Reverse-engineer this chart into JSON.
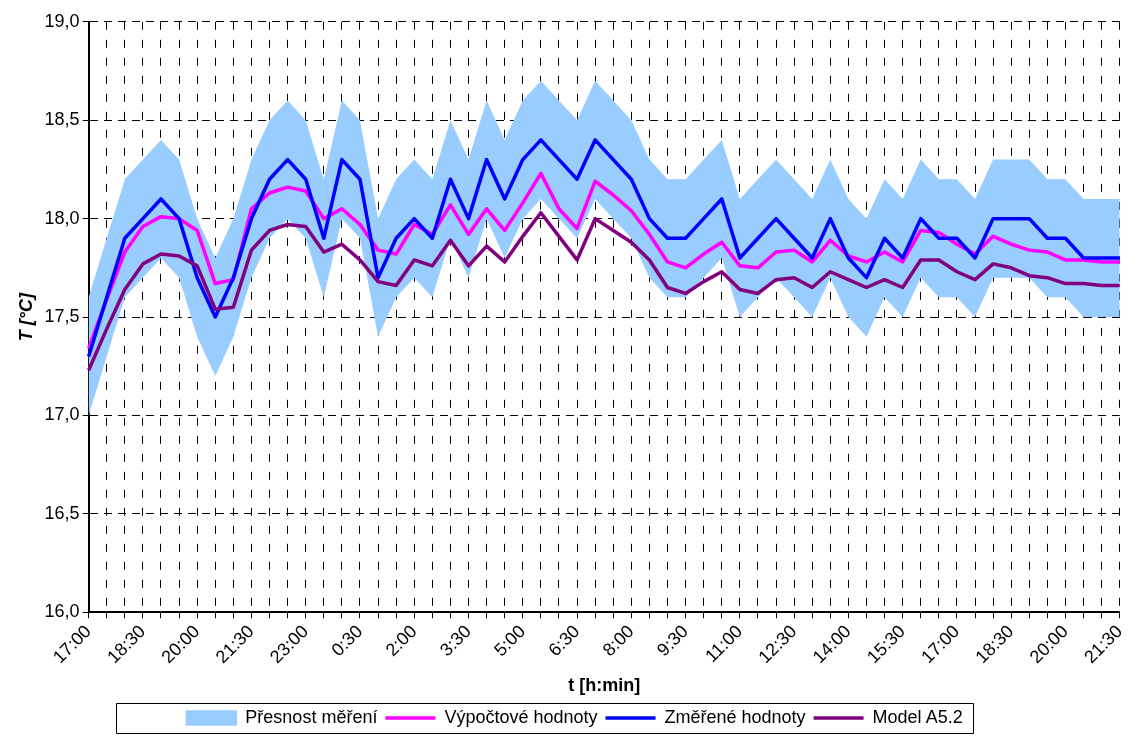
{
  "chart_data": {
    "type": "line",
    "xlabel": "t [h:min]",
    "ylabel": "T [°C]",
    "categories": [
      "17:00",
      null,
      null,
      "18:30",
      null,
      null,
      "20:00",
      null,
      null,
      "21:30",
      null,
      null,
      "23:00",
      null,
      null,
      "0:30",
      null,
      null,
      "2:00",
      null,
      null,
      "3:30",
      null,
      null,
      "5:00",
      null,
      null,
      "6:30",
      null,
      null,
      "8:00",
      null,
      null,
      "9:30",
      null,
      null,
      "11:00",
      null,
      null,
      "12:30",
      null,
      null,
      "14:00",
      null,
      null,
      "15:30",
      null,
      null,
      "17:00",
      null,
      null,
      "18:30",
      null,
      null,
      "20:00",
      null,
      null,
      "21:30"
    ],
    "series": [
      {
        "name": "Přesnost měření",
        "type": "area",
        "color": "#99ccff",
        "lower": [
          17.0,
          17.3,
          17.6,
          17.7,
          17.8,
          17.7,
          17.4,
          17.2,
          17.4,
          17.7,
          17.9,
          18.0,
          17.9,
          17.6,
          18.0,
          17.9,
          17.4,
          17.6,
          17.7,
          17.6,
          17.9,
          17.7,
          18.0,
          17.8,
          18.0,
          18.1,
          18.0,
          17.9,
          18.1,
          18.0,
          17.9,
          17.7,
          17.6,
          17.6,
          17.7,
          17.8,
          17.5,
          17.6,
          17.7,
          17.6,
          17.5,
          17.7,
          17.5,
          17.4,
          17.6,
          17.5,
          17.7,
          17.6,
          17.6,
          17.5,
          17.7,
          17.7,
          17.7,
          17.6,
          17.6,
          17.5,
          17.5,
          17.5
        ],
        "upper": [
          17.6,
          17.9,
          18.2,
          18.3,
          18.4,
          18.3,
          18.0,
          17.8,
          18.0,
          18.3,
          18.5,
          18.6,
          18.5,
          18.2,
          18.6,
          18.5,
          18.0,
          18.2,
          18.3,
          18.2,
          18.5,
          18.3,
          18.6,
          18.4,
          18.6,
          18.7,
          18.6,
          18.5,
          18.7,
          18.6,
          18.5,
          18.3,
          18.2,
          18.2,
          18.3,
          18.4,
          18.1,
          18.2,
          18.3,
          18.2,
          18.1,
          18.3,
          18.1,
          18.0,
          18.2,
          18.1,
          18.3,
          18.2,
          18.2,
          18.1,
          18.3,
          18.3,
          18.3,
          18.2,
          18.2,
          18.1,
          18.1,
          18.1
        ],
        "values": [
          null,
          null,
          null,
          null,
          null,
          null,
          null,
          null,
          null,
          null,
          null,
          null,
          null,
          null,
          null,
          null,
          null,
          null,
          null,
          null,
          null,
          null,
          null,
          null,
          null,
          null,
          null,
          null,
          null,
          null,
          null,
          null,
          null,
          null,
          null,
          null,
          null,
          null,
          null,
          null,
          null,
          null,
          null,
          null,
          null,
          null,
          null,
          null,
          null,
          null,
          null,
          null,
          null,
          null,
          null,
          null,
          null,
          null
        ]
      },
      {
        "name": "Výpočtové hodnoty",
        "color": "#ff00ff",
        "values": [
          17.34,
          17.59,
          17.83,
          17.96,
          18.01,
          18.0,
          17.94,
          17.67,
          17.69,
          18.05,
          18.13,
          18.16,
          18.14,
          18.0,
          18.05,
          17.97,
          17.84,
          17.82,
          17.97,
          17.92,
          18.07,
          17.92,
          18.05,
          17.94,
          18.08,
          18.23,
          18.05,
          17.95,
          18.19,
          18.12,
          18.04,
          17.92,
          17.78,
          17.75,
          17.82,
          17.88,
          17.76,
          17.75,
          17.83,
          17.84,
          17.78,
          17.89,
          17.81,
          17.78,
          17.83,
          17.78,
          17.94,
          17.93,
          17.87,
          17.82,
          17.91,
          17.87,
          17.84,
          17.83,
          17.79,
          17.79,
          17.78,
          17.78
        ]
      },
      {
        "name": "Změřené hodnoty",
        "color": "#0000ff",
        "values": [
          17.3,
          17.6,
          17.9,
          18.0,
          18.1,
          18.0,
          17.7,
          17.5,
          17.7,
          18.0,
          18.2,
          18.3,
          18.2,
          17.9,
          18.3,
          18.2,
          17.7,
          17.9,
          18.0,
          17.9,
          18.2,
          18.0,
          18.3,
          18.1,
          18.3,
          18.4,
          18.3,
          18.2,
          18.4,
          18.3,
          18.2,
          18.0,
          17.9,
          17.9,
          18.0,
          18.1,
          17.8,
          17.9,
          18.0,
          17.9,
          17.8,
          18.0,
          17.8,
          17.7,
          17.9,
          17.8,
          18.0,
          17.9,
          17.9,
          17.8,
          18.0,
          18.0,
          18.0,
          17.9,
          17.9,
          17.8,
          17.8,
          17.8
        ]
      },
      {
        "name": "Model A5.2",
        "color": "#800080",
        "values": [
          17.23,
          17.44,
          17.64,
          17.77,
          17.82,
          17.81,
          17.76,
          17.54,
          17.55,
          17.84,
          17.94,
          17.97,
          17.96,
          17.83,
          17.87,
          17.79,
          17.68,
          17.66,
          17.79,
          17.76,
          17.89,
          17.76,
          17.86,
          17.78,
          17.91,
          18.03,
          17.91,
          17.79,
          18.0,
          17.94,
          17.88,
          17.79,
          17.65,
          17.62,
          17.68,
          17.73,
          17.64,
          17.62,
          17.69,
          17.7,
          17.65,
          17.73,
          17.69,
          17.65,
          17.69,
          17.65,
          17.79,
          17.79,
          17.73,
          17.69,
          17.77,
          17.75,
          17.71,
          17.7,
          17.67,
          17.67,
          17.66,
          17.66
        ]
      }
    ],
    "ylim": [
      16,
      19
    ],
    "yticks": [
      {
        "value": 16,
        "label": "16,0"
      },
      {
        "value": 16.5,
        "label": "16,5"
      },
      {
        "value": 17,
        "label": "17,0"
      },
      {
        "value": 17.5,
        "label": "17,5"
      },
      {
        "value": 18,
        "label": "18,0"
      },
      {
        "value": 18.5,
        "label": "18,5"
      },
      {
        "value": 19,
        "label": "19,0"
      }
    ],
    "grid": true,
    "legend": "bottom",
    "marker": "none",
    "line_style": "solid"
  }
}
